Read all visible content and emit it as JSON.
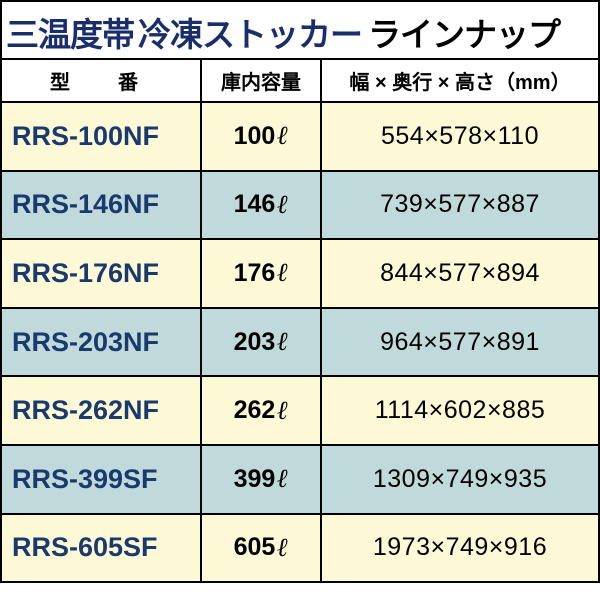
{
  "title": {
    "part1": "三温度帯",
    "part2": "冷凍ストッカー",
    "part3": "ラインナップ",
    "color1": "#1a2e6b",
    "color2": "#1a2e6b",
    "color3": "#000000"
  },
  "headers": {
    "model": "型　番",
    "capacity": "庫内容量",
    "dimensions": "幅 × 奥行 × 高さ（mm）",
    "bg": "#ffffff",
    "fontsize": 20
  },
  "unit": "ℓ",
  "row_style": {
    "odd_bg": "#fdf9d6",
    "even_bg": "#c0d9da",
    "model_color": "#1a3a6e",
    "model_fontsize": 27,
    "capacity_fontsize": 25,
    "dim_fontsize": 25
  },
  "rows": [
    {
      "model": "RRS-100NF",
      "capacity": "100",
      "dims": "554×578×110"
    },
    {
      "model": "RRS-146NF",
      "capacity": "146",
      "dims": "739×577×887"
    },
    {
      "model": "RRS-176NF",
      "capacity": "176",
      "dims": "844×577×894"
    },
    {
      "model": "RRS-203NF",
      "capacity": "203",
      "dims": "964×577×891"
    },
    {
      "model": "RRS-262NF",
      "capacity": "262",
      "dims": "1114×602×885"
    },
    {
      "model": "RRS-399SF",
      "capacity": "399",
      "dims": "1309×749×935"
    },
    {
      "model": "RRS-605SF",
      "capacity": "605",
      "dims": "1973×749×916"
    }
  ]
}
